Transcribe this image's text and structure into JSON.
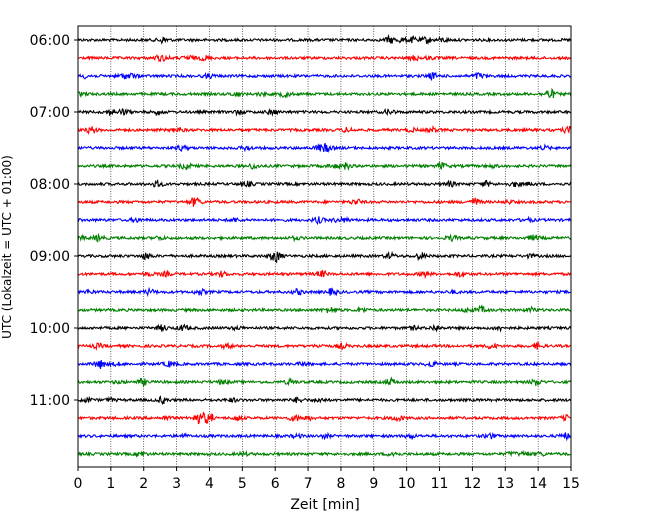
{
  "chart_data": {
    "type": "line",
    "title": "",
    "xlabel": "Zeit  [min]",
    "ylabel": "UTC (Lokalzeit = UTC + 01:00)",
    "xlim": [
      0,
      15
    ],
    "x_ticks": [
      "0",
      "1",
      "2",
      "3",
      "4",
      "5",
      "6",
      "7",
      "8",
      "9",
      "10",
      "11",
      "12",
      "13",
      "14",
      "15"
    ],
    "y_ticks": [
      {
        "label": "06:00",
        "trace": 0
      },
      {
        "label": "07:00",
        "trace": 4
      },
      {
        "label": "08:00",
        "trace": 8
      },
      {
        "label": "09:00",
        "trace": 12
      },
      {
        "label": "10:00",
        "trace": 16
      },
      {
        "label": "11:00",
        "trace": 20
      }
    ],
    "grid": "vertical dotted at each minute",
    "trace_minutes": 15,
    "trace_colors": [
      "#000000",
      "#ff0000",
      "#0000ff",
      "#008000"
    ],
    "traces": [
      {
        "start": "06:00",
        "color": "#000000"
      },
      {
        "start": "06:15",
        "color": "#ff0000"
      },
      {
        "start": "06:30",
        "color": "#0000ff"
      },
      {
        "start": "06:45",
        "color": "#008000"
      },
      {
        "start": "07:00",
        "color": "#000000"
      },
      {
        "start": "07:15",
        "color": "#ff0000"
      },
      {
        "start": "07:30",
        "color": "#0000ff"
      },
      {
        "start": "07:45",
        "color": "#008000"
      },
      {
        "start": "08:00",
        "color": "#000000"
      },
      {
        "start": "08:15",
        "color": "#ff0000"
      },
      {
        "start": "08:30",
        "color": "#0000ff"
      },
      {
        "start": "08:45",
        "color": "#008000"
      },
      {
        "start": "09:00",
        "color": "#000000"
      },
      {
        "start": "09:15",
        "color": "#ff0000"
      },
      {
        "start": "09:30",
        "color": "#0000ff"
      },
      {
        "start": "09:45",
        "color": "#008000"
      },
      {
        "start": "10:00",
        "color": "#000000"
      },
      {
        "start": "10:15",
        "color": "#ff0000"
      },
      {
        "start": "10:30",
        "color": "#0000ff"
      },
      {
        "start": "10:45",
        "color": "#008000"
      },
      {
        "start": "11:00",
        "color": "#000000"
      },
      {
        "start": "11:15",
        "color": "#ff0000"
      },
      {
        "start": "11:30",
        "color": "#0000ff"
      },
      {
        "start": "11:45",
        "color": "#008000"
      }
    ]
  }
}
